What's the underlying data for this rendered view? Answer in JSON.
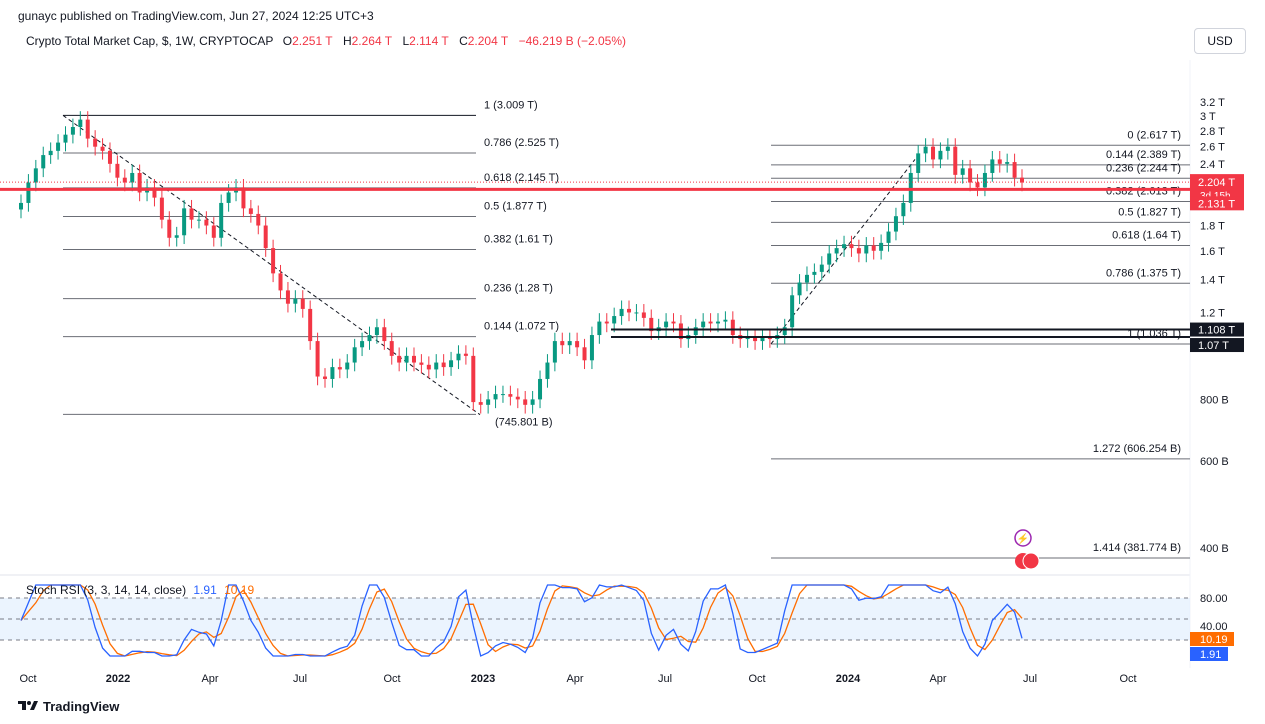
{
  "header": {
    "published": "gunayc published on TradingView.com, Jun 27, 2024 12:25 UTC+3",
    "symbol": "Crypto Total Market Cap, $, 1W, CRYPTOCAP",
    "o_key": "O",
    "o_val": "2.251 T",
    "h_key": "H",
    "h_val": "2.264 T",
    "l_key": "L",
    "l_val": "2.114 T",
    "c_key": "C",
    "c_val": "2.204 T",
    "change": "−46.219 B (−2.05%)",
    "currency": "USD"
  },
  "rsi": {
    "label": "Stoch RSI (3, 3, 14, 14, close)",
    "k": "1.91",
    "d": "10.19"
  },
  "brand": "TradingView",
  "colors": {
    "up": "#089981",
    "down": "#f23645",
    "k": "#2962ff",
    "d": "#ff6d00",
    "price_line": "#f23645"
  },
  "chart_data": {
    "type": "candlestick",
    "title": "Crypto Total Market Cap, $, 1W, CRYPTOCAP",
    "y_scale": "log",
    "y_ticks": [
      "3.2 T",
      "3 T",
      "2.8 T",
      "2.6 T",
      "2.4 T",
      "1.8 T",
      "1.6 T",
      "1.4 T",
      "1.2 T",
      "800 B",
      "600 B",
      "400 B"
    ],
    "x_ticks": [
      "Oct",
      "2022",
      "Apr",
      "Jul",
      "Oct",
      "2023",
      "Apr",
      "Jul",
      "Oct",
      "2024",
      "Apr",
      "Jul",
      "Oct"
    ],
    "price_labels": [
      {
        "text": "2.204 T",
        "sub": "3d 15h",
        "color": "#f23645"
      },
      {
        "text": "2.131 T",
        "color": "#f23645"
      },
      {
        "text": "1.108 T",
        "color": "#131722"
      },
      {
        "text": "1.07 T",
        "color": "#131722"
      }
    ],
    "fib_left": [
      {
        "level": "1",
        "value": "3.009 T",
        "label": "1 (3.009 T)"
      },
      {
        "level": "0.786",
        "value": "2.525 T",
        "label": "0.786 (2.525 T)"
      },
      {
        "level": "0.618",
        "value": "2.145 T",
        "label": "0.618 (2.145 T)"
      },
      {
        "level": "0.5",
        "value": "1.877 T",
        "label": "0.5 (1.877 T)"
      },
      {
        "level": "0.382",
        "value": "1.61 T",
        "label": "0.382 (1.61 T)"
      },
      {
        "level": "0.236",
        "value": "1.28 T",
        "label": "0.236 (1.28 T)"
      },
      {
        "level": "0.144",
        "value": "1.072 T",
        "label": "0.144 (1.072 T)"
      },
      {
        "level": "0",
        "value": "745.801 B",
        "label": "(745.801 B)"
      }
    ],
    "fib_right": [
      {
        "level": "0",
        "value": "2.617 T",
        "label": "0 (2.617 T)"
      },
      {
        "level": "0.144",
        "value": "2.389 T",
        "label": "0.144 (2.389 T)"
      },
      {
        "level": "0.236",
        "value": "2.244 T",
        "label": "0.236 (2.244 T)"
      },
      {
        "level": "0.382",
        "value": "2.013 T",
        "label": "0.382 (2.013 T)"
      },
      {
        "level": "0.5",
        "value": "1.827 T",
        "label": "0.5 (1.827 T)"
      },
      {
        "level": "0.618",
        "value": "1.64 T",
        "label": "0.618 (1.64 T)"
      },
      {
        "level": "0.786",
        "value": "1.375 T",
        "label": "0.786 (1.375 T)"
      },
      {
        "level": "1",
        "value": "1.036 T",
        "label": "1 (1.036 T)"
      },
      {
        "level": "1.272",
        "value": "606.254 B",
        "label": "1.272 (606.254 B)"
      },
      {
        "level": "1.414",
        "value": "381.774 B",
        "label": "1.414 (381.774 B)"
      }
    ],
    "rsi_ticks": [
      "80.00",
      "40.00"
    ],
    "weekly_closes_T": [
      2.0,
      2.2,
      2.35,
      2.5,
      2.55,
      2.65,
      2.75,
      2.85,
      2.95,
      2.7,
      2.6,
      2.55,
      2.4,
      2.25,
      2.2,
      2.3,
      2.1,
      2.15,
      2.05,
      1.85,
      1.7,
      1.72,
      1.95,
      1.85,
      1.85,
      1.8,
      1.7,
      2.0,
      2.1,
      2.15,
      1.95,
      1.9,
      1.8,
      1.62,
      1.44,
      1.33,
      1.25,
      1.28,
      1.22,
      1.05,
      0.89,
      0.88,
      0.93,
      0.92,
      0.95,
      1.02,
      1.05,
      1.08,
      1.12,
      1.05,
      0.98,
      0.95,
      0.98,
      0.95,
      0.94,
      0.92,
      0.95,
      0.93,
      0.96,
      0.99,
      0.98,
      0.79,
      0.78,
      0.8,
      0.82,
      0.82,
      0.81,
      0.8,
      0.78,
      0.8,
      0.88,
      0.95,
      1.05,
      1.03,
      1.05,
      1.02,
      0.96,
      1.08,
      1.15,
      1.14,
      1.18,
      1.22,
      1.2,
      1.2,
      1.17,
      1.1,
      1.12,
      1.15,
      1.14,
      1.06,
      1.08,
      1.12,
      1.15,
      1.14,
      1.15,
      1.16,
      1.08,
      1.06,
      1.07,
      1.05,
      1.07,
      1.06,
      1.08,
      1.12,
      1.3,
      1.38,
      1.43,
      1.45,
      1.5,
      1.58,
      1.62,
      1.65,
      1.62,
      1.58,
      1.64,
      1.6,
      1.66,
      1.75,
      1.88,
      2.0,
      2.3,
      2.52,
      2.6,
      2.45,
      2.55,
      2.6,
      2.28,
      2.35,
      2.2,
      2.15,
      2.3,
      2.45,
      2.4,
      2.42,
      2.25,
      2.2
    ]
  }
}
